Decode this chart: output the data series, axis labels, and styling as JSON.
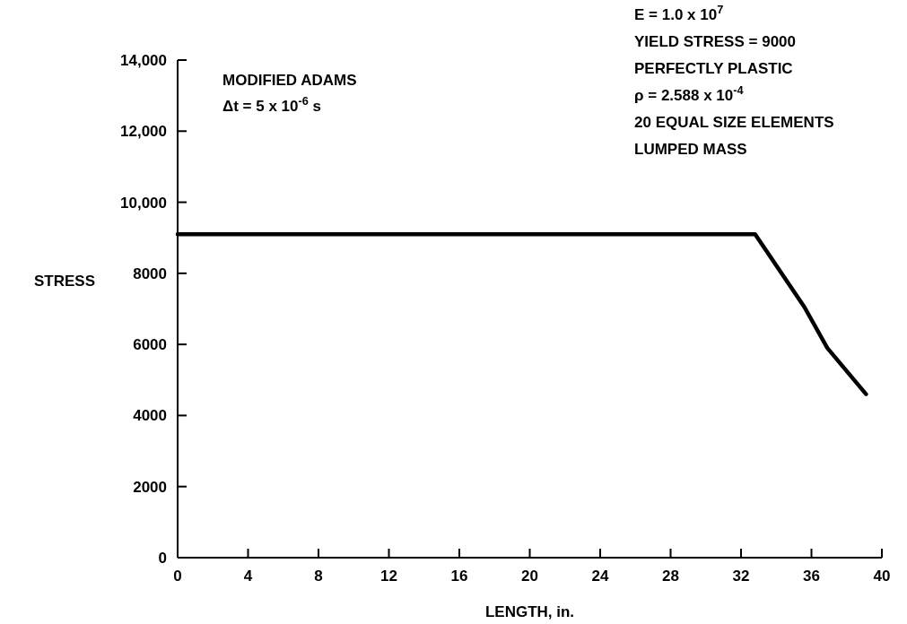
{
  "chart_data": {
    "type": "line",
    "xlabel": "LENGTH, in.",
    "ylabel": "STRESS",
    "x": [
      0,
      32.8,
      35.6,
      36.9,
      39.1
    ],
    "series": [
      {
        "color": "#000000",
        "values": [
          9100,
          9100,
          7050,
          5900,
          4600
        ]
      }
    ],
    "xlim": [
      0,
      40
    ],
    "xticks": [
      0,
      4,
      8,
      12,
      16,
      20,
      24,
      28,
      32,
      36,
      40
    ],
    "ylim": [
      0,
      14000
    ],
    "yticks": [
      0,
      2000,
      4000,
      6000,
      8000,
      {
        "value": 10000,
        "label": "10,000"
      },
      {
        "value": 12000,
        "label": "12,000"
      },
      {
        "value": 14000,
        "label": "14,000"
      }
    ],
    "annotations": [
      "MODIFIED ADAMS",
      "Δt = 5 x 10$^{-6}$ s",
      "E = 1.0 x 10$^{7}$",
      "YIELD STRESS = 9000",
      "PERFECTLY PLASTIC",
      "ρ = 2.588 x 10$^{-4}$",
      "20 EQUAL SIZE ELEMENTS",
      "LUMPED MASS"
    ],
    "grid": false,
    "marker": "none",
    "line_style": "solid"
  }
}
